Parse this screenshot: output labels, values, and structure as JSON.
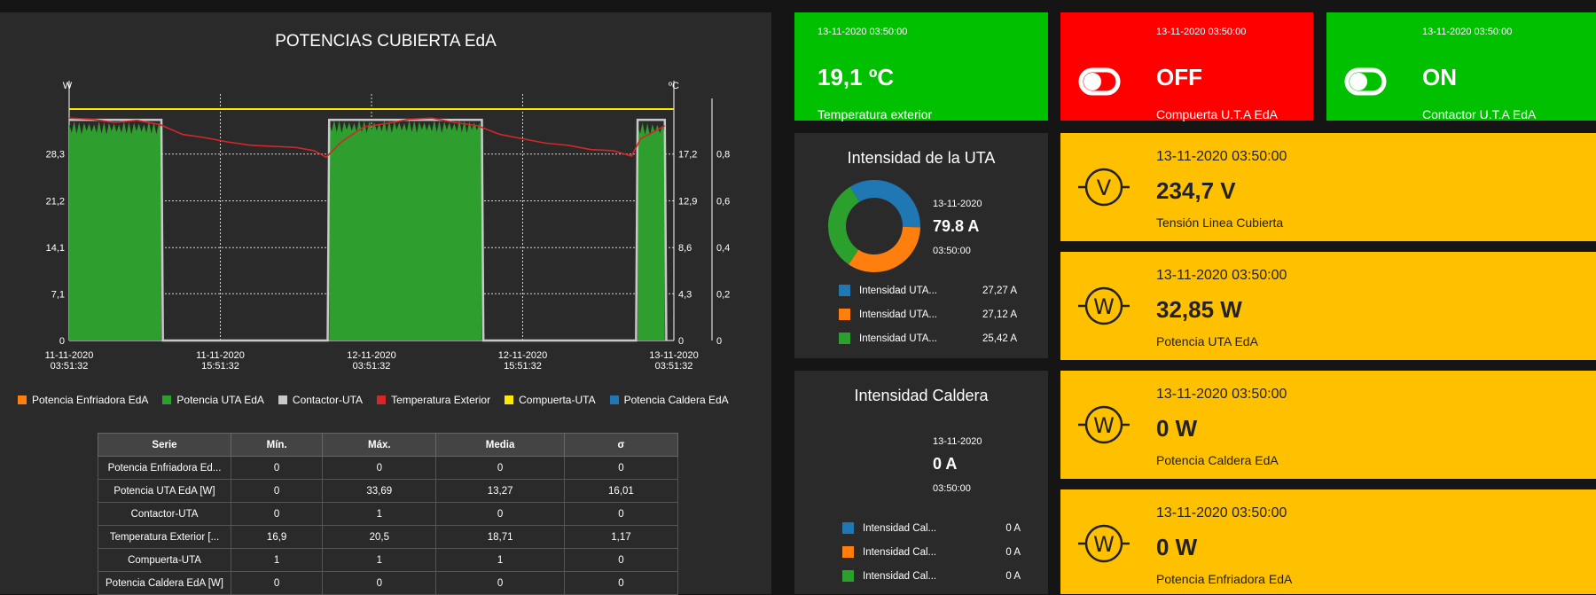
{
  "chart": {
    "title": "POTENCIAS CUBIERTA EdA",
    "left_unit": "W",
    "right_unit": "ºC",
    "left_ticks": [
      "28,3",
      "21,2",
      "14,1",
      "7,1",
      "0"
    ],
    "right_ticks_1": [
      "17,2",
      "12,9",
      "8,6",
      "4,3",
      "0"
    ],
    "right_ticks_2": [
      "0,8",
      "0,6",
      "0,4",
      "0,2",
      "0"
    ],
    "x_ticks": [
      {
        "date": "11-11-2020",
        "time": "03:51:32"
      },
      {
        "date": "11-11-2020",
        "time": "15:51:32"
      },
      {
        "date": "12-11-2020",
        "time": "03:51:32"
      },
      {
        "date": "12-11-2020",
        "time": "15:51:32"
      },
      {
        "date": "13-11-2020",
        "time": "03:51:32"
      }
    ],
    "legend": [
      {
        "name": "Potencia Enfriadora EdA",
        "color": "#ff7f0e"
      },
      {
        "name": "Potencia UTA EdA",
        "color": "#2ca02c"
      },
      {
        "name": "Contactor-UTA",
        "color": "#c8c8c8"
      },
      {
        "name": "Temperatura Exterior",
        "color": "#d62728"
      },
      {
        "name": "Compuerta-UTA",
        "color": "#ffe800"
      },
      {
        "name": "Potencia Caldera EdA",
        "color": "#1f77b4"
      }
    ]
  },
  "chart_data": {
    "type": "area",
    "title": "POTENCIAS CUBIERTA EdA",
    "x": [
      "11-11-2020 03:51:32",
      "11-11-2020 15:51:32",
      "12-11-2020 03:51:32",
      "12-11-2020 15:51:32",
      "13-11-2020 03:51:32"
    ],
    "ylabel": "W",
    "ylim": [
      0,
      35.4
    ],
    "y2label": "ºC",
    "y2lim": [
      0,
      21.5
    ],
    "y3lim": [
      0,
      1
    ],
    "series": [
      {
        "name": "Potencia UTA EdA",
        "segments": [
          [
            0,
            6.1,
            33.2
          ],
          [
            17.2,
            27.3,
            33.4
          ],
          [
            37.6,
            39.4,
            33.0
          ]
        ]
      },
      {
        "name": "Contactor-UTA",
        "on_ranges": [
          [
            0,
            6.1
          ],
          [
            17.2,
            27.3
          ],
          [
            37.6,
            39.4
          ]
        ],
        "value": 1
      },
      {
        "name": "Compuerta-UTA",
        "value": 1
      },
      {
        "name": "Temperatura Exterior",
        "points": [
          [
            0,
            20.5
          ],
          [
            1.5,
            20.4
          ],
          [
            3,
            20.1
          ],
          [
            4.5,
            20.3
          ],
          [
            6,
            19.9
          ],
          [
            7.5,
            19.0
          ],
          [
            9,
            18.7
          ],
          [
            10.5,
            18.3
          ],
          [
            12,
            18.0
          ],
          [
            13.5,
            17.9
          ],
          [
            15,
            17.8
          ],
          [
            16.2,
            17.5
          ],
          [
            17,
            16.9
          ],
          [
            18,
            18.3
          ],
          [
            19.5,
            19.7
          ],
          [
            21,
            20.0
          ],
          [
            22.5,
            20.4
          ],
          [
            24,
            20.5
          ],
          [
            25.5,
            20.1
          ],
          [
            27,
            19.8
          ],
          [
            28.5,
            19.0
          ],
          [
            30,
            18.6
          ],
          [
            31.5,
            18.2
          ],
          [
            33,
            18.0
          ],
          [
            34.5,
            17.6
          ],
          [
            36,
            17.5
          ],
          [
            37.2,
            17.0
          ],
          [
            37.8,
            18.6
          ],
          [
            39.4,
            19.8
          ]
        ]
      }
    ]
  },
  "stats_table": {
    "headers": [
      "Serie",
      "Mín.",
      "Máx.",
      "Media",
      "σ"
    ],
    "rows": [
      [
        "Potencia Enfriadora Ed...",
        "0",
        "0",
        "0",
        "0"
      ],
      [
        "Potencia UTA EdA [W]",
        "0",
        "33,69",
        "13,27",
        "16,01"
      ],
      [
        "Contactor-UTA",
        "0",
        "1",
        "0",
        "0"
      ],
      [
        "Temperatura Exterior [...",
        "16,9",
        "20,5",
        "18,71",
        "1,17"
      ],
      [
        "Compuerta-UTA",
        "1",
        "1",
        "1",
        "0"
      ],
      [
        "Potencia Caldera EdA [W]",
        "0",
        "0",
        "0",
        "0"
      ]
    ]
  },
  "tiles": {
    "temp": {
      "ts": "13-11-2020 03:50:00",
      "value": "19,1 ºC",
      "label": "Temperatura exterior"
    },
    "compuerta": {
      "ts": "13-11-2020 03:50:00",
      "value": "OFF",
      "label": "Compuerta U.T.A EdA"
    },
    "contactor": {
      "ts": "13-11-2020 03:50:00",
      "value": "ON",
      "label": "Contactor U.T.A EdA"
    },
    "uta_current": {
      "title": "Intensidad de la UTA",
      "date": "13-11-2020",
      "value": "79.8 A",
      "time": "03:50:00",
      "donut": [
        {
          "name": "Intensidad UTA...",
          "value": 27.27,
          "display": "27,27 A",
          "color": "#1f77b4"
        },
        {
          "name": "Intensidad UTA...",
          "value": 27.12,
          "display": "27,12 A",
          "color": "#ff7f0e"
        },
        {
          "name": "Intensidad UTA...",
          "value": 25.42,
          "display": "25,42 A",
          "color": "#2ca02c"
        }
      ]
    },
    "caldera_current": {
      "title": "Intensidad Caldera",
      "date": "13-11-2020",
      "value": "0 A",
      "time": "03:50:00",
      "legend": [
        {
          "name": "Intensidad Cal...",
          "display": "0 A",
          "color": "#1f77b4"
        },
        {
          "name": "Intensidad Cal...",
          "display": "0 A",
          "color": "#ff7f0e"
        },
        {
          "name": "Intensidad Cal...",
          "display": "0 A",
          "color": "#2ca02c"
        }
      ]
    },
    "tension": {
      "ts": "13-11-2020 03:50:00",
      "value": "234,7 V",
      "label": "Tensión Linea Cubierta",
      "icon": "V"
    },
    "pot_uta": {
      "ts": "13-11-2020 03:50:00",
      "value": "32,85 W",
      "label": "Potencia UTA EdA",
      "icon": "W"
    },
    "pot_caldera": {
      "ts": "13-11-2020 03:50:00",
      "value": "0 W",
      "label": "Potencia Caldera EdA",
      "icon": "W"
    },
    "pot_enfriadora": {
      "ts": "13-11-2020 03:50:00",
      "value": "0 W",
      "label": "Potencia Enfriadora EdA",
      "icon": "W"
    }
  }
}
